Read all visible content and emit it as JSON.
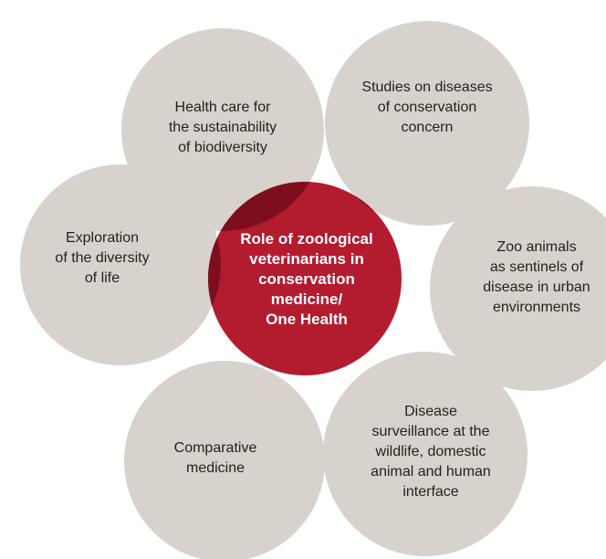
{
  "center": {
    "lines": [
      "Role of zoological",
      "veterinarians in",
      "conservation",
      "medicine/",
      "One Health"
    ]
  },
  "nodes": [
    {
      "lines": [
        "Health care for",
        "the sustainability",
        "of biodiversity"
      ]
    },
    {
      "lines": [
        "Studies on diseases",
        "of conservation",
        "concern"
      ]
    },
    {
      "lines": [
        "Exploration",
        "of the diversity",
        "of life"
      ]
    },
    {
      "lines": [
        "Zoo animals",
        "as sentinels of",
        "disease in urban",
        "environments"
      ]
    },
    {
      "lines": [
        "Comparative",
        "medicine"
      ]
    },
    {
      "lines": [
        "Disease",
        "surveillance at the",
        "wildlife, domestic",
        "animal and human",
        "interface"
      ]
    }
  ]
}
